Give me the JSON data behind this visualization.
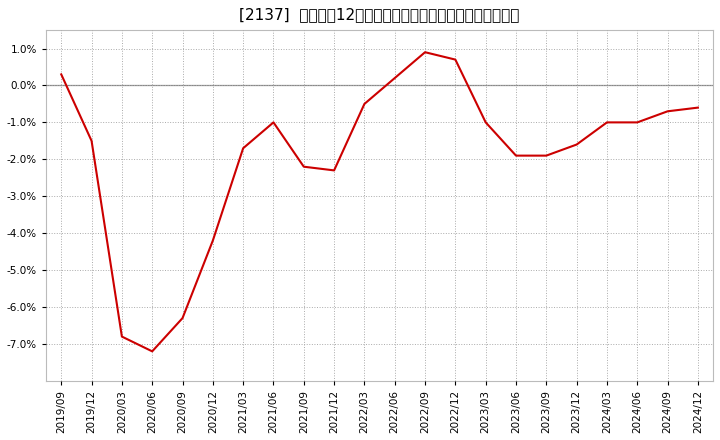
{
  "title": "[2137]  売上高の12か月移動合計の対前年同期増減率の推移",
  "x_labels": [
    "2019/09",
    "2019/12",
    "2020/03",
    "2020/06",
    "2020/09",
    "2020/12",
    "2021/03",
    "2021/06",
    "2021/09",
    "2021/12",
    "2022/03",
    "2022/06",
    "2022/09",
    "2022/12",
    "2023/03",
    "2023/06",
    "2023/09",
    "2023/12",
    "2024/03",
    "2024/06",
    "2024/09",
    "2024/12"
  ],
  "y_values": [
    0.003,
    -0.015,
    -0.068,
    -0.072,
    -0.063,
    -0.042,
    -0.017,
    -0.01,
    -0.022,
    -0.023,
    -0.005,
    0.002,
    0.009,
    0.007,
    -0.01,
    -0.019,
    -0.019,
    -0.016,
    -0.01,
    -0.01,
    -0.007,
    -0.006
  ],
  "line_color": "#cc0000",
  "bg_color": "#ffffff",
  "plot_bg_color": "#ffffff",
  "grid_color": "#aaaaaa",
  "ylim": [
    -0.08,
    0.015
  ],
  "yticks": [
    -0.07,
    -0.06,
    -0.05,
    -0.04,
    -0.03,
    -0.02,
    -0.01,
    0.0,
    0.01
  ],
  "title_fontsize": 11,
  "tick_fontsize": 7.5,
  "zero_line_color": "#888888"
}
